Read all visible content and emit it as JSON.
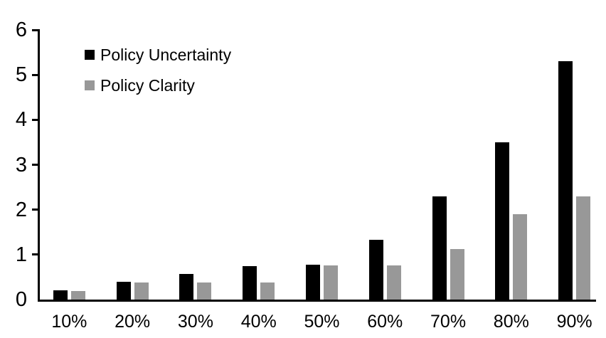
{
  "chart_data": {
    "type": "bar",
    "title": "",
    "xlabel": "",
    "ylabel": "",
    "categories": [
      "10%",
      "20%",
      "30%",
      "40%",
      "50%",
      "60%",
      "70%",
      "80%",
      "90%"
    ],
    "series": [
      {
        "name": "Policy Uncertainty",
        "color": "#000000",
        "values": [
          0.2,
          0.39,
          0.57,
          0.75,
          0.77,
          1.33,
          2.3,
          3.5,
          5.3
        ]
      },
      {
        "name": "Policy Clarity",
        "color": "#989898",
        "values": [
          0.19,
          0.38,
          0.38,
          0.38,
          0.76,
          0.76,
          1.13,
          1.9,
          2.3
        ]
      }
    ],
    "ylim": [
      0,
      6
    ],
    "yticks": [
      0,
      1,
      2,
      3,
      4,
      5,
      6
    ],
    "grid": false,
    "legend_position": "top-left-inside",
    "axis_color": "#000000",
    "background_color": "#ffffff"
  }
}
